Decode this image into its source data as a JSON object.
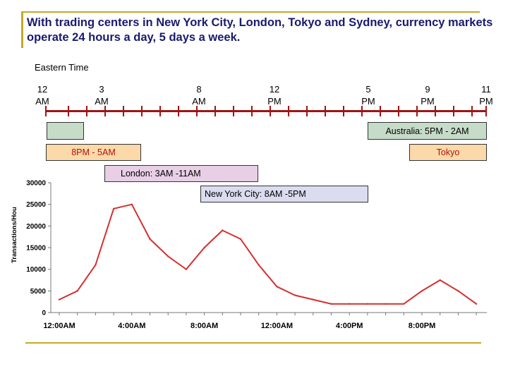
{
  "title": "With trading centers in New York City, London, Tokyo and Sydney, currency markets operate 24 hours a day, 5 days a week.",
  "timezone_label": "Eastern Time",
  "timeline_ticks": [
    {
      "top": "12",
      "bottom": "AM"
    },
    {
      "top": "3",
      "bottom": "AM"
    },
    {
      "top": "8",
      "bottom": "AM"
    },
    {
      "top": "12",
      "bottom": "PM"
    },
    {
      "top": "5",
      "bottom": "PM"
    },
    {
      "top": "9",
      "bottom": "PM"
    },
    {
      "top": "11",
      "bottom": "PM"
    }
  ],
  "sessions": {
    "australia_left": "",
    "australia": "Australia: 5PM - 2AM",
    "tokyo_left": "8PM - 5AM",
    "tokyo": "Tokyo",
    "london": "London: 3AM -11AM",
    "new_york": "New York City: 8AM -5PM"
  },
  "colors": {
    "title": "#1a1a6e",
    "accent_rule": "#c8a826",
    "timeline": "#a01414",
    "australia": "#c6dcc8",
    "tokyo": "#fcd9a8",
    "london": "#e8cfe6",
    "new_york": "#dcdcf0",
    "series": "#d43030"
  },
  "chart_data": {
    "type": "line",
    "title": "",
    "xlabel": "",
    "ylabel": "Transactions/Hou",
    "ylim": [
      0,
      30000
    ],
    "yticks": [
      "30000",
      "25000",
      "20000",
      "15000",
      "10000",
      "5000",
      "0"
    ],
    "xtick_labels": [
      "12:00AM",
      "4:00AM",
      "8:00AM",
      "12:00AM",
      "4:00PM",
      "8:00PM"
    ],
    "x": [
      0,
      1,
      2,
      3,
      4,
      5,
      6,
      7,
      8,
      9,
      10,
      11,
      12,
      13,
      14,
      15,
      16,
      17,
      18,
      19,
      20,
      21,
      22,
      23
    ],
    "series": [
      {
        "values": [
          3000,
          5000,
          11000,
          24000,
          25000,
          17000,
          13000,
          10000,
          15000,
          19000,
          17000,
          11000,
          6000,
          4000,
          3000,
          2000,
          2000,
          2000,
          2000,
          2000,
          5000,
          7500,
          5000,
          2000
        ]
      }
    ],
    "grid": false
  }
}
